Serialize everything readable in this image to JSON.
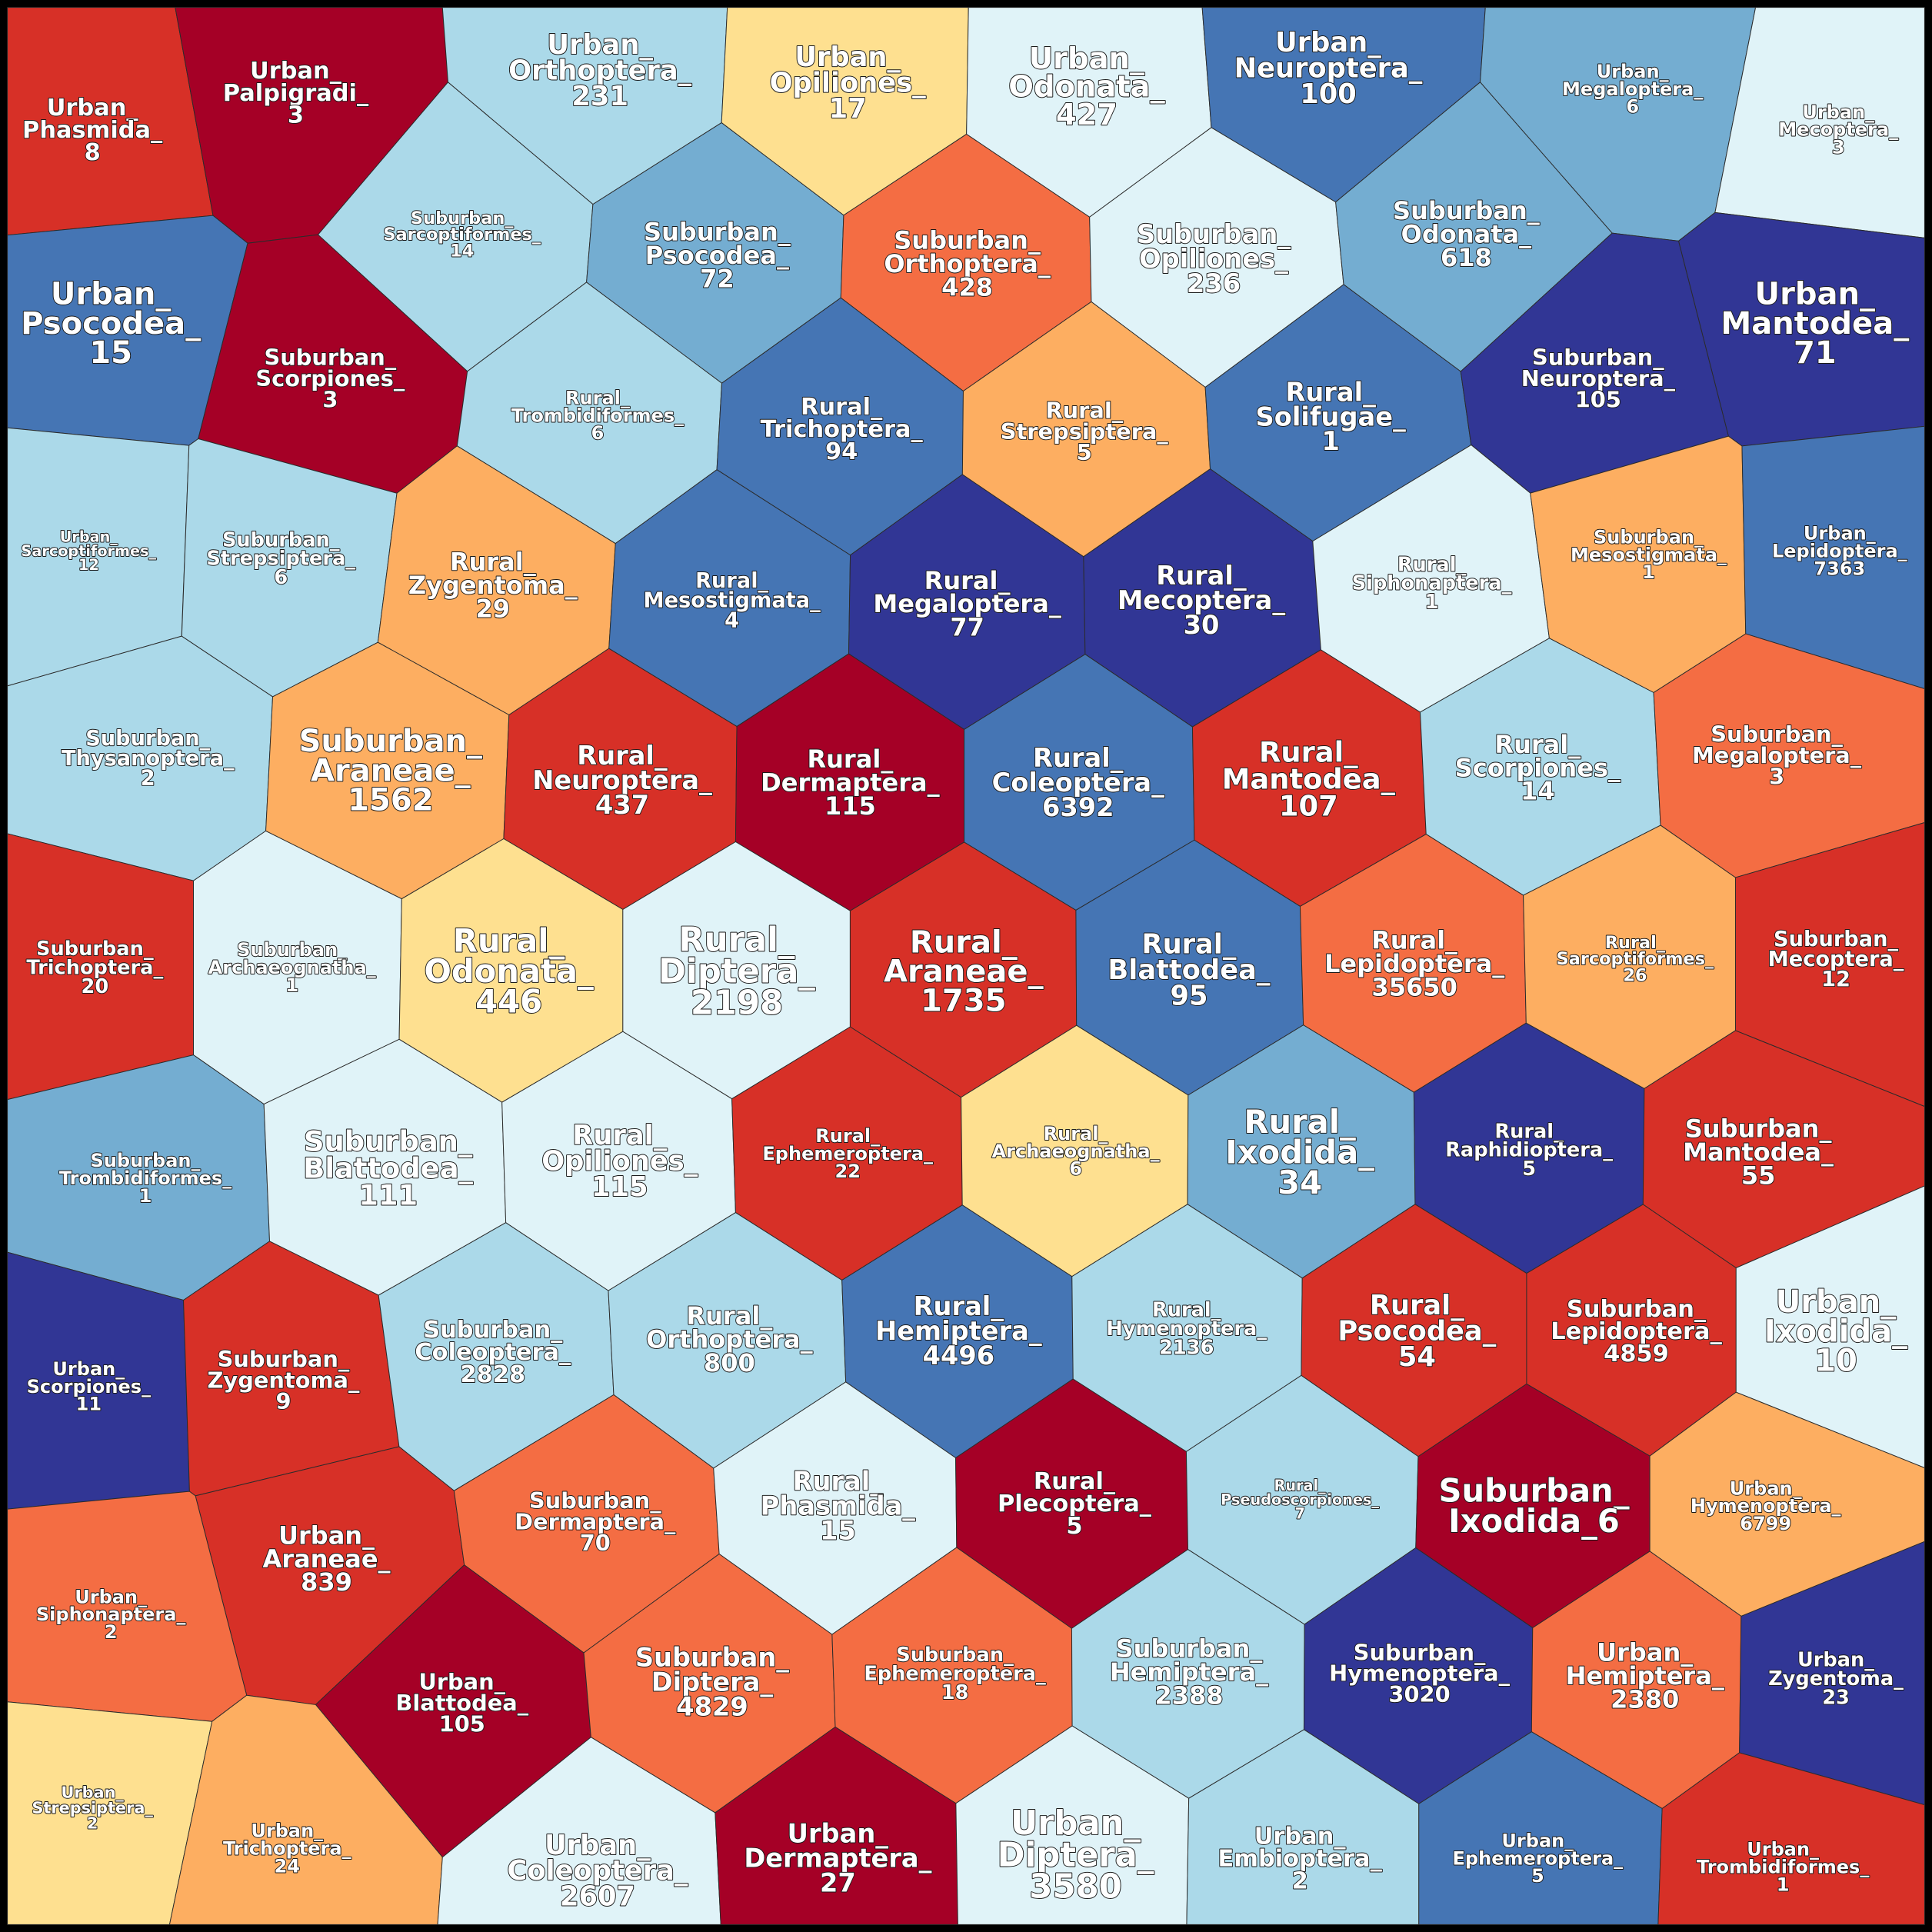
{
  "chart_data": {
    "type": "voronoi-treemap",
    "palette": {
      "dark_red": "#a50026",
      "red": "#d73027",
      "orange_red": "#f46d43",
      "orange": "#fdae61",
      "yellow": "#fee090",
      "pale_blue": "#e0f3f8",
      "light_blue": "#abd9e9",
      "mid_blue": "#74add1",
      "blue": "#4575b4",
      "navy": "#313695"
    },
    "cells": [
      {
        "lines": [
          "Urban_",
          "Phasmida_",
          "8"
        ],
        "color": "#d73027"
      },
      {
        "lines": [
          "Urban_",
          "Palpigradi_",
          "3"
        ],
        "color": "#a50026"
      },
      {
        "lines": [
          "Urban_",
          "Orthoptera_",
          "231"
        ],
        "color": "#abd9e9"
      },
      {
        "lines": [
          "Urban_",
          "Opiliones_",
          "17"
        ],
        "color": "#fee090"
      },
      {
        "lines": [
          "Urban_",
          "Odonata_",
          "427"
        ],
        "color": "#e0f3f8"
      },
      {
        "lines": [
          "Urban_",
          "Neuroptera_",
          "100"
        ],
        "color": "#4575b4"
      },
      {
        "lines": [
          "Urban_",
          "Megaloptera_",
          "6"
        ],
        "color": "#74add1"
      },
      {
        "lines": [
          "Urban_",
          "Mecoptera_",
          "3"
        ],
        "color": "#e0f3f8"
      },
      {
        "lines": [
          "Urban_",
          "Psocodea_",
          "15"
        ],
        "color": "#4575b4"
      },
      {
        "lines": [
          "Suburban_",
          "Sarcoptiformes_",
          "14"
        ],
        "color": "#abd9e9"
      },
      {
        "lines": [
          "Suburban_",
          "Psocodea_",
          "72"
        ],
        "color": "#74add1"
      },
      {
        "lines": [
          "Suburban_",
          "Orthoptera_",
          "428"
        ],
        "color": "#f46d43"
      },
      {
        "lines": [
          "Suburban_",
          "Opiliones_",
          "236"
        ],
        "color": "#e0f3f8"
      },
      {
        "lines": [
          "Suburban_",
          "Odonata_",
          "618"
        ],
        "color": "#74add1"
      },
      {
        "lines": [
          "Urban_",
          "Mantodea_",
          "71"
        ],
        "color": "#313695"
      },
      {
        "lines": [
          "Suburban_",
          "Scorpiones_",
          "3"
        ],
        "color": "#a50026"
      },
      {
        "lines": [
          "Rural_",
          "Trombidiformes_",
          "6"
        ],
        "color": "#abd9e9"
      },
      {
        "lines": [
          "Rural_",
          "Trichoptera_",
          "94"
        ],
        "color": "#4575b4"
      },
      {
        "lines": [
          "Rural_",
          "Strepsiptera_",
          "5"
        ],
        "color": "#fdae61"
      },
      {
        "lines": [
          "Rural_",
          "Solifugae_",
          "1"
        ],
        "color": "#4575b4"
      },
      {
        "lines": [
          "Suburban_",
          "Neuroptera_",
          "105"
        ],
        "color": "#313695"
      },
      {
        "lines": [
          "Urban_",
          "Sarcoptiformes_",
          "12"
        ],
        "color": "#abd9e9"
      },
      {
        "lines": [
          "Suburban_",
          "Strepsiptera_",
          "6"
        ],
        "color": "#abd9e9"
      },
      {
        "lines": [
          "Rural_",
          "Zygentoma_",
          "29"
        ],
        "color": "#fdae61"
      },
      {
        "lines": [
          "Rural_",
          "Mesostigmata_",
          "4"
        ],
        "color": "#4575b4"
      },
      {
        "lines": [
          "Rural_",
          "Megaloptera_",
          "77"
        ],
        "color": "#313695"
      },
      {
        "lines": [
          "Rural_",
          "Mecoptera_",
          "30"
        ],
        "color": "#313695"
      },
      {
        "lines": [
          "Rural_",
          "Siphonaptera_",
          "1"
        ],
        "color": "#e0f3f8"
      },
      {
        "lines": [
          "Suburban_",
          "Mesostigmata_",
          "1"
        ],
        "color": "#fdae61"
      },
      {
        "lines": [
          "Urban_",
          "Lepidoptera_",
          "7363"
        ],
        "color": "#4575b4"
      },
      {
        "lines": [
          "Suburban_",
          "Thysanoptera_",
          "2"
        ],
        "color": "#abd9e9"
      },
      {
        "lines": [
          "Suburban_",
          "Araneae_",
          "1562"
        ],
        "color": "#fdae61"
      },
      {
        "lines": [
          "Rural_",
          "Neuroptera_",
          "437"
        ],
        "color": "#d73027"
      },
      {
        "lines": [
          "Rural_",
          "Dermaptera_",
          "115"
        ],
        "color": "#a50026"
      },
      {
        "lines": [
          "Rural_",
          "Coleoptera_",
          "6392"
        ],
        "color": "#4575b4"
      },
      {
        "lines": [
          "Rural_",
          "Mantodea_",
          "107"
        ],
        "color": "#d73027"
      },
      {
        "lines": [
          "Rural_",
          "Scorpiones_",
          "14"
        ],
        "color": "#abd9e9"
      },
      {
        "lines": [
          "Suburban_",
          "Megaloptera_",
          "3"
        ],
        "color": "#f46d43"
      },
      {
        "lines": [
          "Suburban_",
          "Trichoptera_",
          "20"
        ],
        "color": "#d73027"
      },
      {
        "lines": [
          "Suburban_",
          "Archaeognatha_",
          "1"
        ],
        "color": "#e0f3f8"
      },
      {
        "lines": [
          "Rural_",
          "Odonata_",
          "446"
        ],
        "color": "#fee090"
      },
      {
        "lines": [
          "Rural_",
          "Diptera_",
          "2198"
        ],
        "color": "#e0f3f8"
      },
      {
        "lines": [
          "Rural_",
          "Araneae_",
          "1735"
        ],
        "color": "#d73027"
      },
      {
        "lines": [
          "Rural_",
          "Blattodea_",
          "95"
        ],
        "color": "#4575b4"
      },
      {
        "lines": [
          "Rural_",
          "Lepidoptera_",
          "35650"
        ],
        "color": "#f46d43"
      },
      {
        "lines": [
          "Rural_",
          "Sarcoptiformes_",
          "26"
        ],
        "color": "#fdae61"
      },
      {
        "lines": [
          "Suburban_",
          "Mecoptera_",
          "12"
        ],
        "color": "#d73027"
      },
      {
        "lines": [
          "Suburban_",
          "Trombidiformes_",
          "1"
        ],
        "color": "#74add1"
      },
      {
        "lines": [
          "Suburban_",
          "Blattodea_",
          "111"
        ],
        "color": "#e0f3f8"
      },
      {
        "lines": [
          "Rural_",
          "Opiliones_",
          "115"
        ],
        "color": "#e0f3f8"
      },
      {
        "lines": [
          "Rural_",
          "Ephemeroptera_",
          "22"
        ],
        "color": "#d73027"
      },
      {
        "lines": [
          "Rural_",
          "Archaeognatha_",
          "6"
        ],
        "color": "#fee090"
      },
      {
        "lines": [
          "Rural_",
          "Ixodida_",
          "34"
        ],
        "color": "#74add1"
      },
      {
        "lines": [
          "Rural_",
          "Raphidioptera_",
          "5"
        ],
        "color": "#313695"
      },
      {
        "lines": [
          "Suburban_",
          "Mantodea_",
          "55"
        ],
        "color": "#d73027"
      },
      {
        "lines": [
          "Urban_",
          "Scorpiones_",
          "11"
        ],
        "color": "#313695"
      },
      {
        "lines": [
          "Suburban_",
          "Zygentoma_",
          "9"
        ],
        "color": "#d73027"
      },
      {
        "lines": [
          "Suburban_",
          "Coleoptera_",
          "2828"
        ],
        "color": "#abd9e9"
      },
      {
        "lines": [
          "Rural_",
          "Orthoptera_",
          "800"
        ],
        "color": "#abd9e9"
      },
      {
        "lines": [
          "Rural_",
          "Hemiptera_",
          "4496"
        ],
        "color": "#4575b4"
      },
      {
        "lines": [
          "Rural_",
          "Hymenoptera_",
          "2136"
        ],
        "color": "#abd9e9"
      },
      {
        "lines": [
          "Rural_",
          "Psocodea_",
          "54"
        ],
        "color": "#d73027"
      },
      {
        "lines": [
          "Suburban_",
          "Lepidoptera_",
          "4859"
        ],
        "color": "#d73027"
      },
      {
        "lines": [
          "Urban_",
          "Ixodida_",
          "10"
        ],
        "color": "#e0f3f8"
      },
      {
        "lines": [
          "Urban_",
          "Araneae_",
          "839"
        ],
        "color": "#d73027"
      },
      {
        "lines": [
          "Suburban_",
          "Dermaptera_",
          "70"
        ],
        "color": "#f46d43"
      },
      {
        "lines": [
          "Rural_",
          "Phasmida_",
          "15"
        ],
        "color": "#e0f3f8"
      },
      {
        "lines": [
          "Rural_",
          "Plecoptera_",
          "5"
        ],
        "color": "#a50026"
      },
      {
        "lines": [
          "Rural_",
          "Pseudoscorpiones_",
          "7"
        ],
        "color": "#abd9e9"
      },
      {
        "lines": [
          "Suburban_",
          "Ixodida_6"
        ],
        "color": "#a50026"
      },
      {
        "lines": [
          "Urban_",
          "Hymenoptera_",
          "6799"
        ],
        "color": "#fdae61"
      },
      {
        "lines": [
          "Urban_",
          "Siphonaptera_",
          "2"
        ],
        "color": "#f46d43"
      },
      {
        "lines": [
          "Urban_",
          "Blattodea_",
          "105"
        ],
        "color": "#a50026"
      },
      {
        "lines": [
          "Suburban_",
          "Diptera_",
          "4829"
        ],
        "color": "#f46d43"
      },
      {
        "lines": [
          "Suburban_",
          "Ephemeroptera_",
          "18"
        ],
        "color": "#f46d43"
      },
      {
        "lines": [
          "Suburban_",
          "Hemiptera_",
          "2388"
        ],
        "color": "#abd9e9"
      },
      {
        "lines": [
          "Suburban_",
          "Hymenoptera_",
          "3020"
        ],
        "color": "#313695"
      },
      {
        "lines": [
          "Urban_",
          "Hemiptera_",
          "2380"
        ],
        "color": "#f46d43"
      },
      {
        "lines": [
          "Urban_",
          "Zygentoma_",
          "23"
        ],
        "color": "#313695"
      },
      {
        "lines": [
          "Urban_",
          "Strepsiptera_",
          "2"
        ],
        "color": "#fee090"
      },
      {
        "lines": [
          "Urban_",
          "Trichoptera_",
          "24"
        ],
        "color": "#fdae61"
      },
      {
        "lines": [
          "Urban_",
          "Coleoptera_",
          "2607"
        ],
        "color": "#e0f3f8"
      },
      {
        "lines": [
          "Urban_",
          "Dermaptera_",
          "27"
        ],
        "color": "#a50026"
      },
      {
        "lines": [
          "Urban_",
          "Diptera_",
          "3580"
        ],
        "color": "#e0f3f8"
      },
      {
        "lines": [
          "Urban_",
          "Embioptera_",
          "2"
        ],
        "color": "#abd9e9"
      },
      {
        "lines": [
          "Urban_",
          "Ephemeroptera_",
          "5"
        ],
        "color": "#4575b4"
      },
      {
        "lines": [
          "Urban_",
          "Trombidiformes_",
          "1"
        ],
        "color": "#d73027"
      }
    ]
  }
}
